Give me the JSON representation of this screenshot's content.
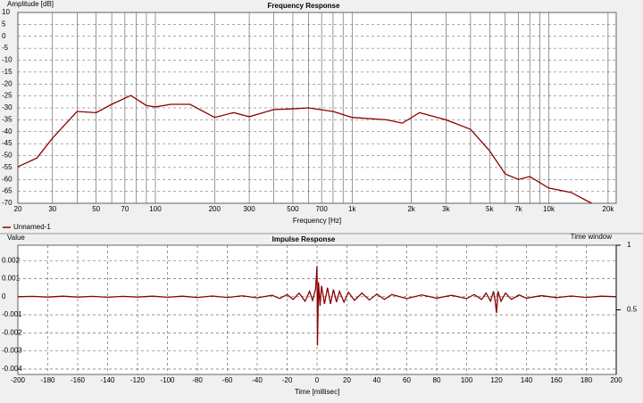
{
  "chart_data": [
    {
      "type": "line",
      "title": "Frequency Response",
      "ylabel": "Amplitude [dB]",
      "xlabel": "Frequency [Hz]",
      "xscale": "log",
      "xlim": [
        20,
        22000
      ],
      "ylim": [
        -70,
        10
      ],
      "xticks": [
        20,
        30,
        50,
        70,
        100,
        200,
        300,
        500,
        700,
        {
          "value": 1000,
          "label": "1k"
        },
        {
          "value": 2000,
          "label": "2k"
        },
        {
          "value": 3000,
          "label": "3k"
        },
        {
          "value": 5000,
          "label": "5k"
        },
        {
          "value": 7000,
          "label": "7k"
        },
        {
          "value": 10000,
          "label": "10k"
        },
        {
          "value": 20000,
          "label": "20k"
        }
      ],
      "xminor": [
        40,
        60,
        80,
        90,
        400,
        600,
        800,
        900,
        4000,
        6000,
        8000,
        9000
      ],
      "yticks": [
        10,
        5,
        0,
        -5,
        -10,
        -15,
        -20,
        -25,
        -30,
        -35,
        -40,
        -45,
        -50,
        -55,
        -60,
        -65,
        -70
      ],
      "grid": true,
      "legend": "below",
      "x": [
        20,
        25,
        30,
        40,
        50,
        60,
        75,
        90,
        100,
        120,
        150,
        200,
        250,
        300,
        400,
        500,
        600,
        800,
        1000,
        1500,
        1800,
        2200,
        3000,
        4000,
        5000,
        6000,
        7000,
        8000,
        10000,
        13000,
        16500
      ],
      "series": [
        {
          "name": "Unnamed-1",
          "color": "#8b0000",
          "values": [
            -54.7,
            -51,
            -42.7,
            -31.5,
            -32,
            -28.5,
            -24.8,
            -29,
            -29.6,
            -28.5,
            -28.5,
            -34,
            -32,
            -33.7,
            -30.7,
            -30.4,
            -30,
            -31.5,
            -34,
            -35,
            -36.4,
            -32,
            -35,
            -39,
            -48,
            -57.7,
            -60,
            -58.8,
            -63.6,
            -65.5,
            -70
          ]
        }
      ]
    },
    {
      "type": "line",
      "title": "Impulse Response",
      "ylabel": "Value",
      "xlabel": "Time [millisec]",
      "y2label": "Time window",
      "xlim": [
        -200,
        200
      ],
      "ylim": [
        -0.0043,
        0.00285
      ],
      "y2lim": [
        0,
        1
      ],
      "xticks": [
        -200,
        -180,
        -160,
        -140,
        -120,
        -100,
        -80,
        -60,
        -40,
        -20,
        0,
        20,
        40,
        60,
        80,
        100,
        120,
        140,
        160,
        180,
        200
      ],
      "yticks": [
        0.002,
        0.001,
        0,
        -0.001,
        -0.002,
        -0.003,
        -0.004
      ],
      "y2ticks": [
        0.5,
        1
      ],
      "grid": true,
      "x": [
        -200,
        -190,
        -180,
        -170,
        -160,
        -150,
        -140,
        -130,
        -120,
        -110,
        -100,
        -90,
        -80,
        -70,
        -60,
        -50,
        -40,
        -30,
        -25,
        -20,
        -16,
        -12,
        -8,
        -5,
        -3,
        -1,
        0,
        0.3,
        1,
        2,
        3,
        5,
        7,
        9,
        11,
        13,
        15,
        18,
        21,
        25,
        30,
        35,
        40,
        45,
        50,
        60,
        70,
        80,
        90,
        100,
        105,
        110,
        113,
        116,
        118,
        119,
        120,
        121,
        123,
        126,
        130,
        135,
        140,
        150,
        160,
        170,
        180,
        190,
        200
      ],
      "series": [
        {
          "color": "#8b0000",
          "values": [
            0,
            2e-05,
            -2e-05,
            3e-05,
            -2e-05,
            2e-05,
            -3e-05,
            2e-05,
            -2e-05,
            3e-05,
            -3e-05,
            3e-05,
            -4e-05,
            4e-05,
            -4e-05,
            5e-05,
            -6e-05,
            8e-05,
            -0.0001,
            0.00012,
            -0.00015,
            0.0002,
            -0.00025,
            0.0003,
            -0.0002,
            0.0004,
            0.0017,
            -0.0027,
            0.0008,
            -0.0005,
            0.0006,
            -0.0004,
            0.0005,
            -0.0004,
            0.0004,
            -0.0003,
            0.0003,
            -0.0003,
            0.00025,
            -0.0002,
            0.0002,
            -0.00018,
            0.00015,
            -0.00015,
            0.00012,
            -0.0001,
            0.0001,
            -8e-05,
            8e-05,
            -0.0001,
            0.00012,
            -0.00015,
            0.0002,
            -0.00025,
            0.0003,
            -0.0002,
            -0.0009,
            0.0003,
            -0.00025,
            0.0002,
            -0.00015,
            0.0001,
            -8e-05,
            6e-05,
            -5e-05,
            4e-05,
            -4e-05,
            3e-05,
            0
          ]
        }
      ]
    }
  ]
}
